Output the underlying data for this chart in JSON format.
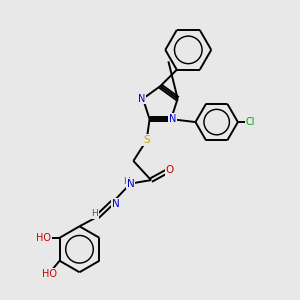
{
  "background_color": "#e8e8e8",
  "atom_colors": {
    "N": "#0000cc",
    "O": "#cc0000",
    "S": "#ccaa00",
    "Cl": "#00aa00",
    "C": "#000000",
    "H": "#555555"
  },
  "bond_color": "#000000",
  "bond_width": 1.4,
  "figsize": [
    3.0,
    3.0
  ],
  "dpi": 100,
  "bg": "#e8e8e8"
}
